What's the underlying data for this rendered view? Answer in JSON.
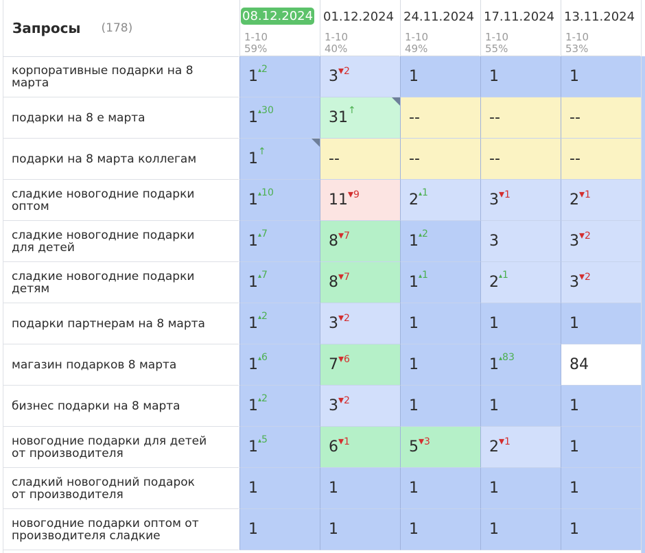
{
  "header": {
    "title": "Запросы",
    "count": "(178)"
  },
  "dates": [
    {
      "label": "08.12.2024",
      "range": "1-10",
      "pct": "59%",
      "active": true
    },
    {
      "label": "01.12.2024",
      "range": "1-10",
      "pct": "40%"
    },
    {
      "label": "24.11.2024",
      "range": "1-10",
      "pct": "49%"
    },
    {
      "label": "17.11.2024",
      "range": "1-10",
      "pct": "55%"
    },
    {
      "label": "13.11.2024",
      "range": "1-10",
      "pct": "53%"
    }
  ],
  "rows": [
    {
      "query": "корпоративные подарки на 8 марта",
      "cells": [
        {
          "v": "1",
          "ch": "2",
          "dir": "up",
          "bg": "blue"
        },
        {
          "v": "3",
          "ch": "2",
          "dir": "dn",
          "bg": "lblue"
        },
        {
          "v": "1",
          "bg": "blue"
        },
        {
          "v": "1",
          "bg": "blue"
        },
        {
          "v": "1",
          "bg": "blue"
        }
      ]
    },
    {
      "query": "подарки на 8 е марта",
      "cells": [
        {
          "v": "1",
          "ch": "30",
          "dir": "up",
          "bg": "blue"
        },
        {
          "v": "31",
          "ch": "↑",
          "dir": "new",
          "bg": "lgreen",
          "corner": true
        },
        {
          "v": "--",
          "bg": "yellow"
        },
        {
          "v": "--",
          "bg": "yellow"
        },
        {
          "v": "--",
          "bg": "yellow"
        }
      ]
    },
    {
      "query": "подарки на 8 марта коллегам",
      "cells": [
        {
          "v": "1",
          "ch": "↑",
          "dir": "new",
          "bg": "blue",
          "corner": true
        },
        {
          "v": "--",
          "bg": "yellow"
        },
        {
          "v": "--",
          "bg": "yellow"
        },
        {
          "v": "--",
          "bg": "yellow"
        },
        {
          "v": "--",
          "bg": "yellow"
        }
      ]
    },
    {
      "query": "сладкие новогодние подарки оптом",
      "cells": [
        {
          "v": "1",
          "ch": "10",
          "dir": "up",
          "bg": "blue"
        },
        {
          "v": "11",
          "ch": "9",
          "dir": "dn",
          "bg": "pink"
        },
        {
          "v": "2",
          "ch": "1",
          "dir": "up",
          "bg": "lblue"
        },
        {
          "v": "3",
          "ch": "1",
          "dir": "dn",
          "bg": "lblue"
        },
        {
          "v": "2",
          "ch": "1",
          "dir": "dn",
          "bg": "lblue"
        }
      ]
    },
    {
      "query": "сладкие новогодние подарки для детей",
      "cells": [
        {
          "v": "1",
          "ch": "7",
          "dir": "up",
          "bg": "blue"
        },
        {
          "v": "8",
          "ch": "7",
          "dir": "dn",
          "bg": "green"
        },
        {
          "v": "1",
          "ch": "2",
          "dir": "up",
          "bg": "blue"
        },
        {
          "v": "3",
          "bg": "lblue"
        },
        {
          "v": "3",
          "ch": "2",
          "dir": "dn",
          "bg": "lblue"
        }
      ]
    },
    {
      "query": "сладкие новогодние подарки детям",
      "cells": [
        {
          "v": "1",
          "ch": "7",
          "dir": "up",
          "bg": "blue"
        },
        {
          "v": "8",
          "ch": "7",
          "dir": "dn",
          "bg": "green"
        },
        {
          "v": "1",
          "ch": "1",
          "dir": "up",
          "bg": "blue"
        },
        {
          "v": "2",
          "ch": "1",
          "dir": "up",
          "bg": "lblue"
        },
        {
          "v": "3",
          "ch": "2",
          "dir": "dn",
          "bg": "lblue"
        }
      ]
    },
    {
      "query": "подарки партнерам на 8 марта",
      "cells": [
        {
          "v": "1",
          "ch": "2",
          "dir": "up",
          "bg": "blue"
        },
        {
          "v": "3",
          "ch": "2",
          "dir": "dn",
          "bg": "lblue"
        },
        {
          "v": "1",
          "bg": "blue"
        },
        {
          "v": "1",
          "bg": "blue"
        },
        {
          "v": "1",
          "bg": "blue"
        }
      ]
    },
    {
      "query": "магазин подарков 8 марта",
      "cells": [
        {
          "v": "1",
          "ch": "6",
          "dir": "up",
          "bg": "blue"
        },
        {
          "v": "7",
          "ch": "6",
          "dir": "dn",
          "bg": "green"
        },
        {
          "v": "1",
          "bg": "blue"
        },
        {
          "v": "1",
          "ch": "83",
          "dir": "up",
          "bg": "blue"
        },
        {
          "v": "84",
          "bg": "white"
        }
      ]
    },
    {
      "query": "бизнес подарки на 8 марта",
      "cells": [
        {
          "v": "1",
          "ch": "2",
          "dir": "up",
          "bg": "blue"
        },
        {
          "v": "3",
          "ch": "2",
          "dir": "dn",
          "bg": "lblue"
        },
        {
          "v": "1",
          "bg": "blue"
        },
        {
          "v": "1",
          "bg": "blue"
        },
        {
          "v": "1",
          "bg": "blue"
        }
      ]
    },
    {
      "query": "новогодние подарки для детей от производителя",
      "cells": [
        {
          "v": "1",
          "ch": "5",
          "dir": "up",
          "bg": "blue"
        },
        {
          "v": "6",
          "ch": "1",
          "dir": "dn",
          "bg": "green"
        },
        {
          "v": "5",
          "ch": "3",
          "dir": "dn",
          "bg": "green"
        },
        {
          "v": "2",
          "ch": "1",
          "dir": "dn",
          "bg": "lblue"
        },
        {
          "v": "1",
          "bg": "blue"
        }
      ]
    },
    {
      "query": "сладкий новогодний подарок от производителя",
      "cells": [
        {
          "v": "1",
          "bg": "blue"
        },
        {
          "v": "1",
          "bg": "blue"
        },
        {
          "v": "1",
          "bg": "blue"
        },
        {
          "v": "1",
          "bg": "blue"
        },
        {
          "v": "1",
          "bg": "blue"
        }
      ]
    },
    {
      "query": "новогодние подарки оптом от производителя сладкие",
      "cells": [
        {
          "v": "1",
          "bg": "blue"
        },
        {
          "v": "1",
          "bg": "blue"
        },
        {
          "v": "1",
          "bg": "blue"
        },
        {
          "v": "1",
          "bg": "blue"
        },
        {
          "v": "1",
          "bg": "blue"
        }
      ]
    }
  ],
  "colors": {
    "blue": "#b9cef7",
    "lblue": "#d2dffb",
    "green": "#b5f0c8",
    "lgreen": "#cbf6d9",
    "yellow": "#fbf3c3",
    "pink": "#fce4e2",
    "white": "#ffffff",
    "up": "#4caf50",
    "dn": "#d32f2f",
    "active_date": "#5cc26a"
  }
}
